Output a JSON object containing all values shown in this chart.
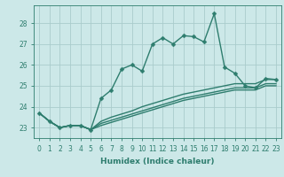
{
  "xlabel": "Humidex (Indice chaleur)",
  "background_color": "#cce8e8",
  "grid_color": "#aacccc",
  "line_color": "#2e7d6e",
  "xlim": [
    -0.5,
    23.5
  ],
  "ylim": [
    22.5,
    28.85
  ],
  "yticks": [
    23,
    24,
    25,
    26,
    27,
    28
  ],
  "xticks": [
    0,
    1,
    2,
    3,
    4,
    5,
    6,
    7,
    8,
    9,
    10,
    11,
    12,
    13,
    14,
    15,
    16,
    17,
    18,
    19,
    20,
    21,
    22,
    23
  ],
  "series_main": [
    23.7,
    23.3,
    23.0,
    23.1,
    23.1,
    22.9,
    24.4,
    24.8,
    25.8,
    26.0,
    25.7,
    27.0,
    27.3,
    27.0,
    27.4,
    27.35,
    27.1,
    28.45,
    25.9,
    25.6,
    25.0,
    24.9,
    25.35,
    25.3
  ],
  "series_lines": [
    [
      23.7,
      23.3,
      23.0,
      23.1,
      23.1,
      22.9,
      23.3,
      23.5,
      23.65,
      23.8,
      24.0,
      24.15,
      24.3,
      24.45,
      24.6,
      24.7,
      24.8,
      24.9,
      25.0,
      25.1,
      25.1,
      25.1,
      25.3,
      25.3
    ],
    [
      23.7,
      23.3,
      23.0,
      23.1,
      23.1,
      22.9,
      23.2,
      23.35,
      23.5,
      23.65,
      23.8,
      23.95,
      24.1,
      24.25,
      24.4,
      24.5,
      24.6,
      24.7,
      24.8,
      24.9,
      24.9,
      24.9,
      25.1,
      25.1
    ],
    [
      23.7,
      23.3,
      23.0,
      23.1,
      23.1,
      22.9,
      23.1,
      23.25,
      23.4,
      23.55,
      23.7,
      23.85,
      24.0,
      24.15,
      24.3,
      24.4,
      24.5,
      24.6,
      24.7,
      24.8,
      24.8,
      24.8,
      25.0,
      25.0
    ]
  ],
  "marker_size": 2.5,
  "line_width": 1.0,
  "axis_fontsize": 6.5,
  "tick_fontsize": 5.5
}
